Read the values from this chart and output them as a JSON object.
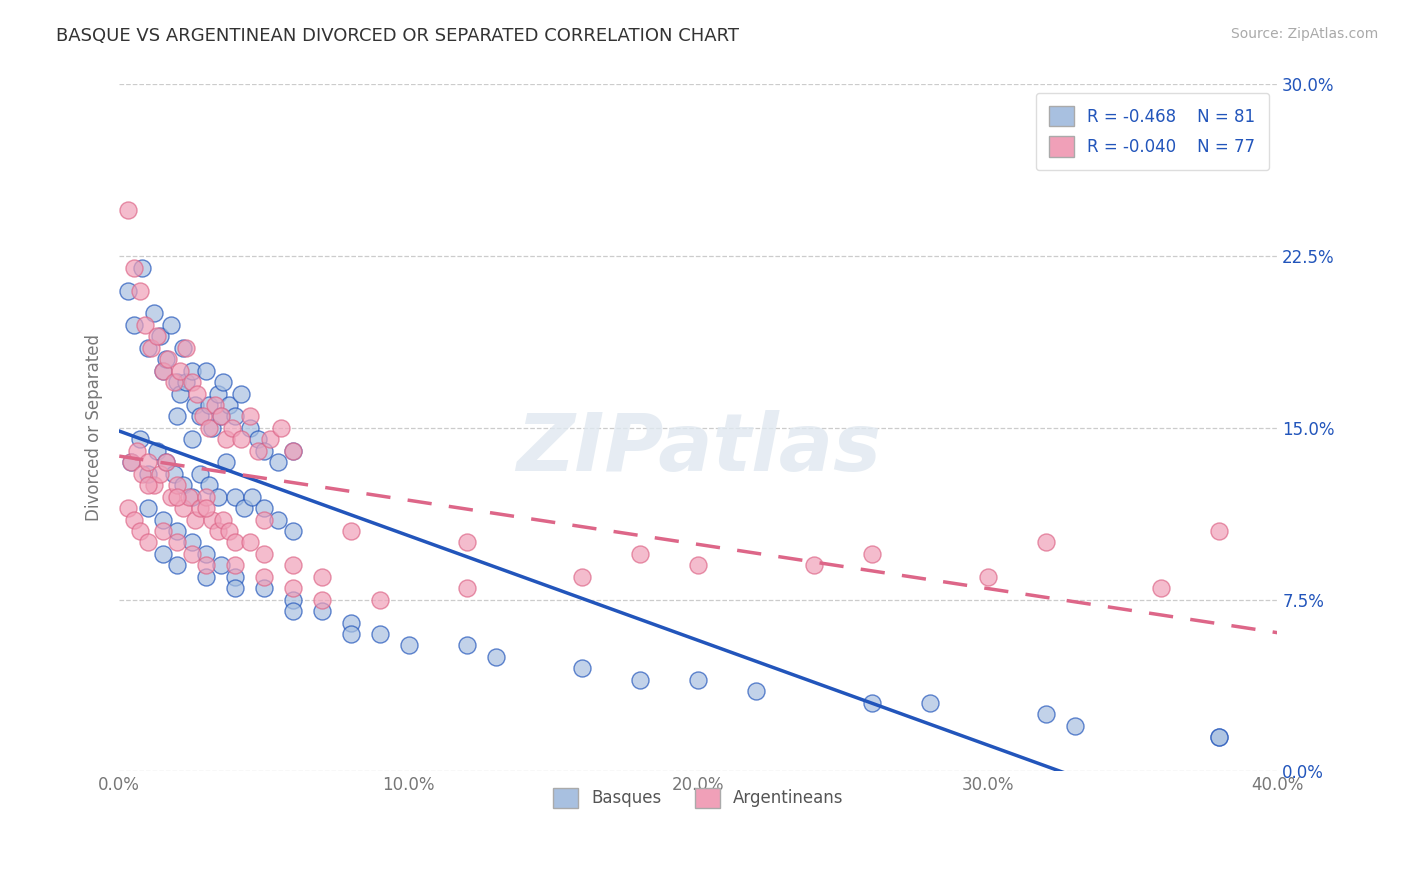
{
  "title": "BASQUE VS ARGENTINEAN DIVORCED OR SEPARATED CORRELATION CHART",
  "source": "Source: ZipAtlas.com",
  "ylabel": "Divorced or Separated",
  "xlim": [
    0.0,
    40.0
  ],
  "ylim": [
    0.0,
    30.0
  ],
  "xticks": [
    0.0,
    10.0,
    20.0,
    30.0,
    40.0
  ],
  "yticks": [
    0.0,
    7.5,
    15.0,
    22.5,
    30.0
  ],
  "basque_color": "#a8c0e0",
  "argentinean_color": "#f0a0b8",
  "basque_line_color": "#2255bb",
  "argentinean_line_color": "#dd6688",
  "legend_name1": "Basques",
  "legend_name2": "Argentineans",
  "R_basque": -0.468,
  "N_basque": 81,
  "R_argentinean": -0.04,
  "N_argentinean": 77,
  "watermark": "ZIPatlas",
  "background_color": "#ffffff",
  "grid_color": "#cccccc",
  "basque_x": [
    0.3,
    0.5,
    0.8,
    1.0,
    1.2,
    1.4,
    1.5,
    1.6,
    1.8,
    2.0,
    2.1,
    2.2,
    2.3,
    2.5,
    2.6,
    2.8,
    3.0,
    3.1,
    3.2,
    3.4,
    3.5,
    3.6,
    3.8,
    4.0,
    4.2,
    4.5,
    4.8,
    5.0,
    5.5,
    6.0,
    0.4,
    0.7,
    1.0,
    1.3,
    1.6,
    1.9,
    2.2,
    2.5,
    2.8,
    3.1,
    3.4,
    3.7,
    4.0,
    4.3,
    4.6,
    5.0,
    5.5,
    6.0,
    1.0,
    1.5,
    2.0,
    2.5,
    3.0,
    3.5,
    4.0,
    5.0,
    6.0,
    7.0,
    8.0,
    9.0,
    12.0,
    16.0,
    20.0,
    26.0,
    32.0,
    38.0,
    1.5,
    2.0,
    3.0,
    4.0,
    6.0,
    8.0,
    10.0,
    13.0,
    18.0,
    22.0,
    28.0,
    33.0,
    38.0,
    2.0,
    2.5
  ],
  "basque_y": [
    21.0,
    19.5,
    22.0,
    18.5,
    20.0,
    19.0,
    17.5,
    18.0,
    19.5,
    17.0,
    16.5,
    18.5,
    17.0,
    17.5,
    16.0,
    15.5,
    17.5,
    16.0,
    15.0,
    16.5,
    15.5,
    17.0,
    16.0,
    15.5,
    16.5,
    15.0,
    14.5,
    14.0,
    13.5,
    14.0,
    13.5,
    14.5,
    13.0,
    14.0,
    13.5,
    13.0,
    12.5,
    12.0,
    13.0,
    12.5,
    12.0,
    13.5,
    12.0,
    11.5,
    12.0,
    11.5,
    11.0,
    10.5,
    11.5,
    11.0,
    10.5,
    10.0,
    9.5,
    9.0,
    8.5,
    8.0,
    7.5,
    7.0,
    6.5,
    6.0,
    5.5,
    4.5,
    4.0,
    3.0,
    2.5,
    1.5,
    9.5,
    9.0,
    8.5,
    8.0,
    7.0,
    6.0,
    5.5,
    5.0,
    4.0,
    3.5,
    3.0,
    2.0,
    1.5,
    15.5,
    14.5
  ],
  "argentinean_x": [
    0.3,
    0.5,
    0.7,
    0.9,
    1.1,
    1.3,
    1.5,
    1.7,
    1.9,
    2.1,
    2.3,
    2.5,
    2.7,
    2.9,
    3.1,
    3.3,
    3.5,
    3.7,
    3.9,
    4.2,
    4.5,
    4.8,
    5.2,
    5.6,
    6.0,
    0.4,
    0.6,
    0.8,
    1.0,
    1.2,
    1.4,
    1.6,
    1.8,
    2.0,
    2.2,
    2.4,
    2.6,
    2.8,
    3.0,
    3.2,
    3.4,
    3.6,
    3.8,
    4.0,
    4.5,
    5.0,
    6.0,
    7.0,
    0.3,
    0.5,
    0.7,
    1.0,
    1.5,
    2.0,
    2.5,
    3.0,
    4.0,
    5.0,
    6.0,
    7.0,
    9.0,
    12.0,
    16.0,
    20.0,
    26.0,
    32.0,
    38.0,
    1.0,
    2.0,
    3.0,
    5.0,
    8.0,
    12.0,
    18.0,
    24.0,
    30.0,
    36.0
  ],
  "argentinean_y": [
    24.5,
    22.0,
    21.0,
    19.5,
    18.5,
    19.0,
    17.5,
    18.0,
    17.0,
    17.5,
    18.5,
    17.0,
    16.5,
    15.5,
    15.0,
    16.0,
    15.5,
    14.5,
    15.0,
    14.5,
    15.5,
    14.0,
    14.5,
    15.0,
    14.0,
    13.5,
    14.0,
    13.0,
    13.5,
    12.5,
    13.0,
    13.5,
    12.0,
    12.5,
    11.5,
    12.0,
    11.0,
    11.5,
    12.0,
    11.0,
    10.5,
    11.0,
    10.5,
    10.0,
    10.0,
    9.5,
    9.0,
    8.5,
    11.5,
    11.0,
    10.5,
    10.0,
    10.5,
    10.0,
    9.5,
    9.0,
    9.0,
    8.5,
    8.0,
    7.5,
    7.5,
    8.0,
    8.5,
    9.0,
    9.5,
    10.0,
    10.5,
    12.5,
    12.0,
    11.5,
    11.0,
    10.5,
    10.0,
    9.5,
    9.0,
    8.5,
    8.0
  ]
}
